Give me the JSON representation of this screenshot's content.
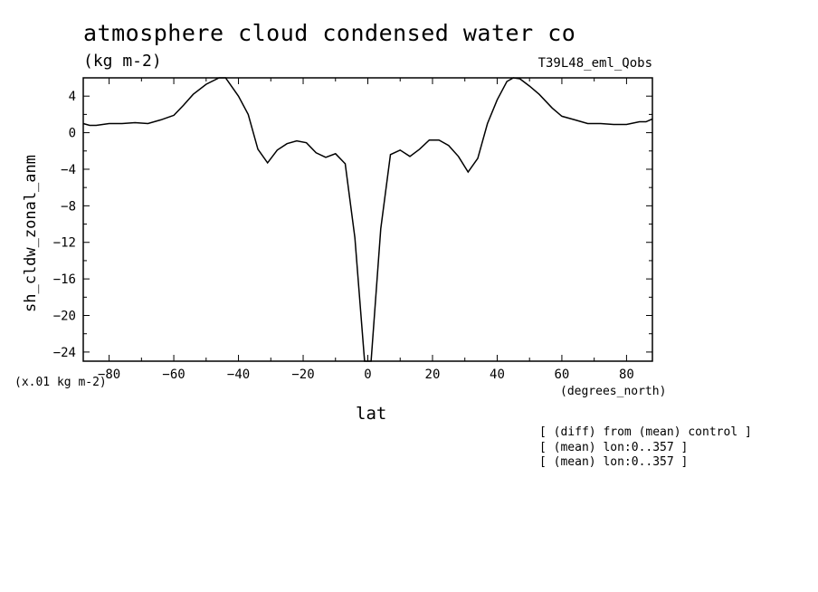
{
  "header": {
    "title": "atmosphere cloud condensed water co",
    "units": "(kg m-2)",
    "run_label": "T39L48_eml_Qobs"
  },
  "axis_notes": {
    "y_scale_note": "(x.01 kg m-2)",
    "x_units": "(degrees_north)",
    "x_label": "lat",
    "y_label": "sh_cldw_zonal_anm"
  },
  "notes": [
    "[ (diff) from (mean) control ]",
    "[ (mean) lon:0..357 ]",
    "[ (mean) lon:0..357 ]"
  ],
  "chart_data": {
    "type": "line",
    "title": "atmosphere cloud condensed water co",
    "xlabel": "lat",
    "ylabel": "sh_cldw_zonal_anm",
    "xlim": [
      -88,
      88
    ],
    "ylim": [
      -25,
      6
    ],
    "x_ticks": [
      -80,
      -60,
      -40,
      -20,
      0,
      20,
      40,
      60,
      80
    ],
    "y_ticks": [
      4,
      0,
      -4,
      -8,
      -12,
      -16,
      -20,
      -24
    ],
    "grid": false,
    "series": [
      {
        "x": [
          -88,
          -86,
          -84,
          -80,
          -76,
          -72,
          -68,
          -64,
          -60,
          -57,
          -54,
          -50,
          -46,
          -44,
          -42,
          -40,
          -37,
          -34,
          -31,
          -28,
          -25,
          -22,
          -19,
          -16,
          -13,
          -10,
          -7,
          -4,
          -1,
          1,
          4,
          7,
          10,
          13,
          16,
          19,
          22,
          25,
          28,
          31,
          34,
          37,
          40,
          43,
          45,
          47,
          50,
          53,
          57,
          60,
          64,
          68,
          72,
          76,
          80,
          84,
          86,
          88
        ],
        "y": [
          1.0,
          0.8,
          0.8,
          1.0,
          1.0,
          1.1,
          1.0,
          1.4,
          1.9,
          3.0,
          4.2,
          5.3,
          6.0,
          6.0,
          5.0,
          4.0,
          2.0,
          -1.8,
          -3.3,
          -1.9,
          -1.2,
          -0.9,
          -1.1,
          -2.2,
          -2.7,
          -2.3,
          -3.4,
          -11.5,
          -25.0,
          -25.0,
          -10.5,
          -2.4,
          -1.9,
          -2.6,
          -1.8,
          -0.8,
          -0.8,
          -1.4,
          -2.6,
          -4.3,
          -2.8,
          1.0,
          3.6,
          5.6,
          6.0,
          5.9,
          5.1,
          4.2,
          2.7,
          1.8,
          1.4,
          1.0,
          1.0,
          0.9,
          0.9,
          1.2,
          1.2,
          1.5
        ]
      }
    ]
  }
}
